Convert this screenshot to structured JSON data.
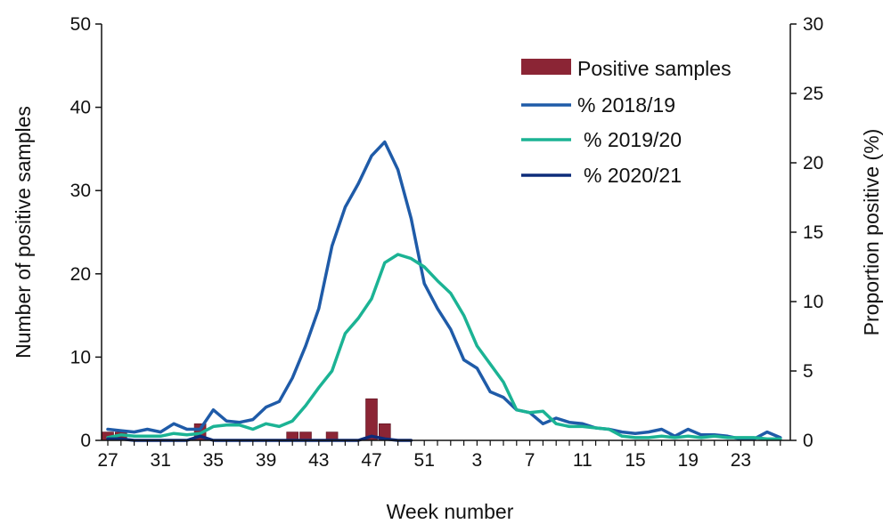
{
  "chart_data": {
    "type": "bar+line",
    "title": "",
    "xlabel": "Week number",
    "ylabel_left": "Number of positive samples",
    "ylabel_right": "Proportion positive (%)",
    "ylim_left": [
      0,
      50
    ],
    "ylim_right": [
      0,
      30
    ],
    "yticks_left": [
      "0",
      "10",
      "20",
      "30",
      "40",
      "50"
    ],
    "yticks_right": [
      "0",
      "5",
      "10",
      "15",
      "20",
      "25",
      "30"
    ],
    "x_tick_labels": [
      "27",
      "31",
      "35",
      "39",
      "43",
      "47",
      "51",
      "3",
      "7",
      "11",
      "15",
      "19",
      "23"
    ],
    "weeks": [
      27,
      28,
      29,
      30,
      31,
      32,
      33,
      34,
      35,
      36,
      37,
      38,
      39,
      40,
      41,
      42,
      43,
      44,
      45,
      46,
      47,
      48,
      49,
      50,
      51,
      52,
      1,
      2,
      3,
      4,
      5,
      6,
      7,
      8,
      9,
      10,
      11,
      12,
      13,
      14,
      15,
      16,
      17,
      18,
      19,
      20,
      21,
      22,
      23,
      24,
      25,
      26
    ],
    "grid": false,
    "legend_position": "top-right",
    "series": [
      {
        "name": "Positive samples",
        "kind": "bar",
        "axis": "left",
        "color": "#8b2535",
        "values": [
          1,
          1,
          0,
          0,
          0,
          0,
          0,
          2,
          0,
          0,
          0,
          0,
          0,
          0,
          1,
          1,
          0,
          1,
          0,
          0,
          5,
          2,
          0,
          0,
          0,
          0,
          0,
          0,
          0,
          0,
          0,
          0,
          0,
          0,
          0,
          0,
          0,
          0,
          0,
          0,
          0,
          0,
          0,
          0,
          0,
          0,
          0,
          0,
          0,
          0,
          0,
          0
        ]
      },
      {
        "name": "% 2018/19",
        "kind": "line",
        "axis": "right",
        "color": "#1f5ba8",
        "values": [
          0.8,
          0.7,
          0.6,
          0.8,
          0.6,
          1.2,
          0.8,
          0.8,
          2.2,
          1.4,
          1.3,
          1.5,
          2.4,
          2.8,
          4.5,
          6.8,
          9.5,
          14.0,
          16.8,
          18.5,
          20.5,
          21.5,
          19.5,
          16.0,
          11.3,
          9.5,
          8.0,
          5.8,
          5.2,
          3.5,
          3.1,
          2.2,
          2.0,
          1.2,
          1.6,
          1.3,
          1.2,
          0.9,
          0.8,
          0.6,
          0.5,
          0.6,
          0.8,
          0.3,
          0.8,
          0.4,
          0.4,
          0.3,
          0.1,
          0.1,
          0.6,
          0.2
        ]
      },
      {
        "name": "% 2019/20",
        "kind": "line",
        "axis": "right",
        "color": "#1bb394",
        "values": [
          0.2,
          0.4,
          0.3,
          0.3,
          0.3,
          0.5,
          0.4,
          0.5,
          1.0,
          1.1,
          1.1,
          0.8,
          1.2,
          1.0,
          1.4,
          2.5,
          3.8,
          5.0,
          7.7,
          8.8,
          10.2,
          12.8,
          13.4,
          13.1,
          12.5,
          11.5,
          10.6,
          9.0,
          6.8,
          5.5,
          4.2,
          2.2,
          2.0,
          2.1,
          1.2,
          1.0,
          1.0,
          0.9,
          0.8,
          0.3,
          0.2,
          0.2,
          0.3,
          0.2,
          0.3,
          0.2,
          0.3,
          0.2,
          0.2,
          0.2,
          0.1,
          0.1
        ]
      },
      {
        "name": "% 2020/21",
        "kind": "line",
        "axis": "right",
        "color": "#0d2c7a",
        "values": [
          0.1,
          0.1,
          0.0,
          0.0,
          0.0,
          0.0,
          0.0,
          0.3,
          0.0,
          0.0,
          0.0,
          0.0,
          0.0,
          0.0,
          0.0,
          0.0,
          0.0,
          0.0,
          0.0,
          0.0,
          0.3,
          0.1,
          0.0,
          0.0,
          null,
          null,
          null,
          null,
          null,
          null,
          null,
          null,
          null,
          null,
          null,
          null,
          null,
          null,
          null,
          null,
          null,
          null,
          null,
          null,
          null,
          null,
          null,
          null,
          null,
          null,
          null,
          null
        ]
      }
    ]
  }
}
